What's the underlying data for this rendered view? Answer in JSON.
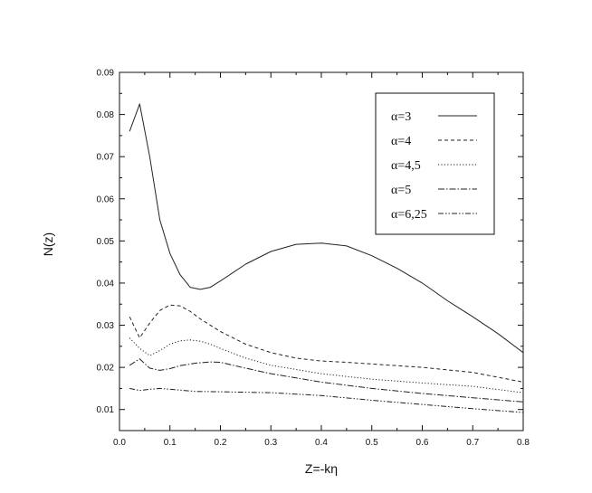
{
  "chart_data": {
    "type": "line",
    "title": "",
    "xlabel": "Z=-kη",
    "ylabel": "N(z)",
    "xlim": [
      0.0,
      0.8
    ],
    "ylim": [
      0.005,
      0.09
    ],
    "x_ticks": [
      0.0,
      0.1,
      0.2,
      0.3,
      0.4,
      0.5,
      0.6,
      0.7,
      0.8
    ],
    "x_tick_labels": [
      "0.0",
      "0.1",
      "0.2",
      "0.3",
      "0.4",
      "0.5",
      "0.6",
      "0.7",
      "0.8"
    ],
    "y_ticks": [
      0.01,
      0.02,
      0.03,
      0.04,
      0.05,
      0.06,
      0.07,
      0.08,
      0.09
    ],
    "y_tick_labels": [
      "0.01",
      "0.02",
      "0.03",
      "0.04",
      "0.05",
      "0.06",
      "0.07",
      "0.08",
      "0.09"
    ],
    "grid": false,
    "legend_position": "top-right",
    "series": [
      {
        "name": "α=3",
        "dash": "solid",
        "x": [
          0.02,
          0.04,
          0.06,
          0.08,
          0.1,
          0.12,
          0.14,
          0.16,
          0.18,
          0.2,
          0.25,
          0.3,
          0.35,
          0.4,
          0.45,
          0.5,
          0.55,
          0.6,
          0.65,
          0.7,
          0.75,
          0.8
        ],
        "y": [
          0.076,
          0.0825,
          0.07,
          0.055,
          0.047,
          0.042,
          0.039,
          0.0385,
          0.039,
          0.0405,
          0.0445,
          0.0475,
          0.0492,
          0.0495,
          0.0488,
          0.0465,
          0.0435,
          0.04,
          0.0358,
          0.032,
          0.028,
          0.0235
        ]
      },
      {
        "name": "α=4",
        "dash": "dashed",
        "x": [
          0.02,
          0.04,
          0.06,
          0.08,
          0.1,
          0.12,
          0.14,
          0.16,
          0.2,
          0.25,
          0.3,
          0.35,
          0.4,
          0.45,
          0.5,
          0.6,
          0.7,
          0.8
        ],
        "y": [
          0.032,
          0.027,
          0.0305,
          0.0335,
          0.0348,
          0.0346,
          0.0333,
          0.0315,
          0.0285,
          0.0255,
          0.0235,
          0.0222,
          0.0215,
          0.0212,
          0.0208,
          0.02,
          0.0188,
          0.0165
        ]
      },
      {
        "name": "α=4,5",
        "dash": "dotted",
        "x": [
          0.02,
          0.04,
          0.06,
          0.08,
          0.1,
          0.12,
          0.14,
          0.16,
          0.18,
          0.2,
          0.25,
          0.3,
          0.4,
          0.5,
          0.6,
          0.7,
          0.8
        ],
        "y": [
          0.027,
          0.0245,
          0.0228,
          0.024,
          0.0255,
          0.0263,
          0.0265,
          0.0262,
          0.0255,
          0.0245,
          0.0222,
          0.0205,
          0.0185,
          0.0172,
          0.0163,
          0.0155,
          0.014
        ]
      },
      {
        "name": "α=5",
        "dash": "dashdot",
        "x": [
          0.02,
          0.04,
          0.06,
          0.08,
          0.1,
          0.12,
          0.15,
          0.18,
          0.2,
          0.25,
          0.3,
          0.4,
          0.5,
          0.6,
          0.7,
          0.8
        ],
        "y": [
          0.0205,
          0.022,
          0.0198,
          0.0193,
          0.0197,
          0.0204,
          0.021,
          0.0213,
          0.0212,
          0.0198,
          0.0185,
          0.0165,
          0.015,
          0.0138,
          0.0128,
          0.0118
        ]
      },
      {
        "name": "α=6,25",
        "dash": "dashdotdot",
        "x": [
          0.02,
          0.04,
          0.06,
          0.08,
          0.1,
          0.15,
          0.2,
          0.3,
          0.4,
          0.5,
          0.6,
          0.7,
          0.8
        ],
        "y": [
          0.015,
          0.0145,
          0.0148,
          0.015,
          0.0148,
          0.0143,
          0.0142,
          0.014,
          0.0133,
          0.0122,
          0.0112,
          0.0102,
          0.0093
        ]
      }
    ]
  }
}
